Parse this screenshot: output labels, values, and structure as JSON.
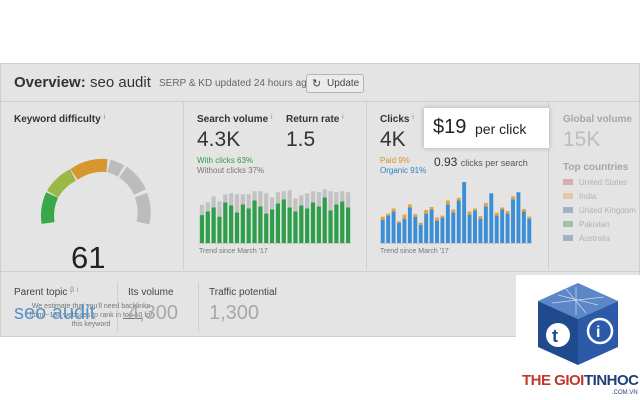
{
  "header": {
    "title": "Overview:",
    "keyword": "seo audit",
    "updated_text": "SERP & KD updated 24 hours ago",
    "update_button": "Update",
    "update_icon": "refresh-icon"
  },
  "keyword_difficulty": {
    "label": "Keyword difficulty",
    "info": "i",
    "value": "61",
    "gauge_fraction": 0.61,
    "note_line1": "We estimate that you'll need backlinks",
    "note_line2_pre": "from ~134 websites to rank in ",
    "note_link": "top 10",
    "note_line2_post": " for",
    "note_line3": "this keyword",
    "colors": {
      "red": "#d9534f",
      "orange": "#e8a33a",
      "green": "#5cb85c",
      "gray": "#cfcfcf"
    }
  },
  "search_volume": {
    "label": "Search volume",
    "info": "i",
    "value": "4.3K",
    "with_clicks": "With clicks 63%",
    "without_clicks": "Without clicks 37%",
    "trend": "Trend since March '17",
    "colors": {
      "with": "#1e8e3e",
      "without": "#bdbdbd"
    }
  },
  "return_rate": {
    "label": "Return rate",
    "info": "i",
    "value": "1.5"
  },
  "clicks": {
    "label": "Clicks",
    "info": "i",
    "value": "4K",
    "paid": "Paid 9%",
    "organic": "Organic 91%",
    "per_search_value": "0.93",
    "per_search_label": "clicks per search",
    "trend": "Trend since March '17",
    "colors": {
      "paid": "#e8a33a",
      "organic": "#3a8fd6"
    }
  },
  "cpc": {
    "price": "$19",
    "per": "per click"
  },
  "global_volume": {
    "label": "Global volume",
    "value": "15K",
    "top_countries_label": "Top countries",
    "countries": [
      "United States",
      "India",
      "United Kingdom",
      "Pakistan",
      "Australia"
    ]
  },
  "bottom": {
    "parent_topic_label": "Parent topic",
    "parent_topic_value": "seo audit",
    "its_volume_label": "Its volume",
    "its_volume_value": "4,300",
    "traffic_label": "Traffic potential",
    "traffic_value": "1,300"
  },
  "watermark": {
    "word1": "THE GIOI",
    "word2": "TINHOC",
    "domain": ".COM.VN"
  },
  "chart_data": [
    {
      "type": "bar",
      "series": [
        {
          "name": "With clicks",
          "values": [
            55,
            62,
            70,
            52,
            80,
            74,
            60,
            76,
            68,
            84,
            72,
            58,
            66,
            78,
            86,
            70,
            62,
            74,
            68,
            80,
            72,
            90,
            64,
            76,
            82,
            70
          ]
        },
        {
          "name": "Without clicks",
          "values": [
            20,
            18,
            22,
            30,
            16,
            24,
            36,
            20,
            28,
            18,
            30,
            40,
            24,
            22,
            16,
            34,
            26,
            20,
            30,
            22,
            28,
            16,
            38,
            24,
            20,
            30
          ]
        }
      ]
    },
    {
      "type": "bar",
      "series": [
        {
          "name": "Organic",
          "values": [
            46,
            54,
            62,
            40,
            48,
            70,
            52,
            36,
            58,
            66,
            44,
            50,
            76,
            60,
            84,
            120,
            56,
            64,
            48,
            72,
            98,
            54,
            66,
            58,
            86,
            100,
            62,
            48
          ]
        },
        {
          "name": "Paid",
          "values": [
            6,
            4,
            6,
            3,
            8,
            6,
            5,
            4,
            7,
            5,
            6,
            4,
            8,
            6,
            5,
            0,
            6,
            4,
            5,
            7,
            0,
            6,
            4,
            5,
            6,
            0,
            5,
            4
          ]
        }
      ]
    }
  ]
}
